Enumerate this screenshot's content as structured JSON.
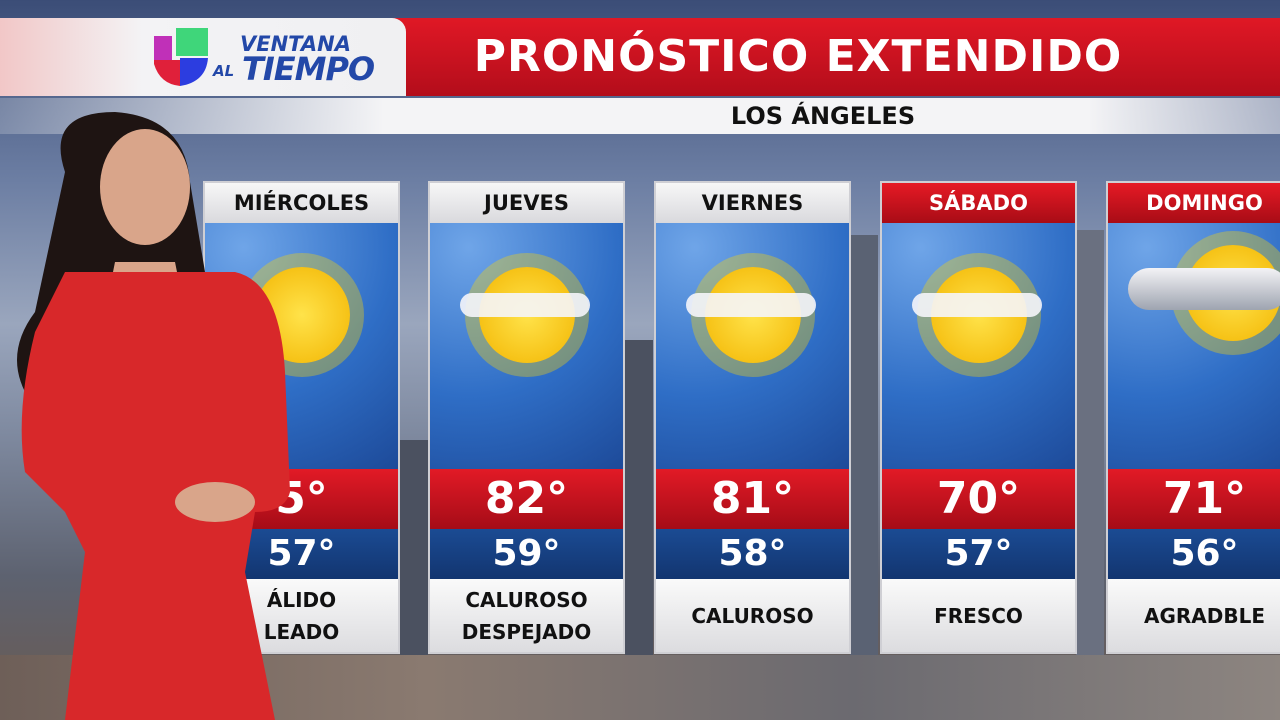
{
  "header": {
    "logo_line1": "VENTANA",
    "logo_al": "AL",
    "logo_line2": "TIEMPO",
    "title": "PRONÓSTICO EXTENDIDO",
    "city": "LOS ÁNGELES"
  },
  "colors": {
    "red": "#d9141f",
    "blue": "#153f82",
    "logo_blue": "#2348a8"
  },
  "days": [
    {
      "day": "MIÉRCOLES",
      "high": "5°",
      "low": "57°",
      "desc": [
        "ÁLIDO",
        "LEADO"
      ],
      "icon": "sun-icon",
      "red_header": false
    },
    {
      "day": "JUEVES",
      "high": "82°",
      "low": "59°",
      "desc": [
        "CALUROSO",
        "DESPEJADO"
      ],
      "icon": "mostly-sunny-icon",
      "red_header": false
    },
    {
      "day": "VIERNES",
      "high": "81°",
      "low": "58°",
      "desc": [
        "CALUROSO"
      ],
      "icon": "mostly-sunny-icon",
      "red_header": false
    },
    {
      "day": "SÁBADO",
      "high": "70°",
      "low": "57°",
      "desc": [
        "FRESCO"
      ],
      "icon": "mostly-sunny-icon",
      "red_header": true
    },
    {
      "day": "DOMINGO",
      "high": "71°",
      "low": "56°",
      "desc": [
        "AGRADBLE"
      ],
      "icon": "partly-cloudy-icon",
      "red_header": true
    }
  ]
}
